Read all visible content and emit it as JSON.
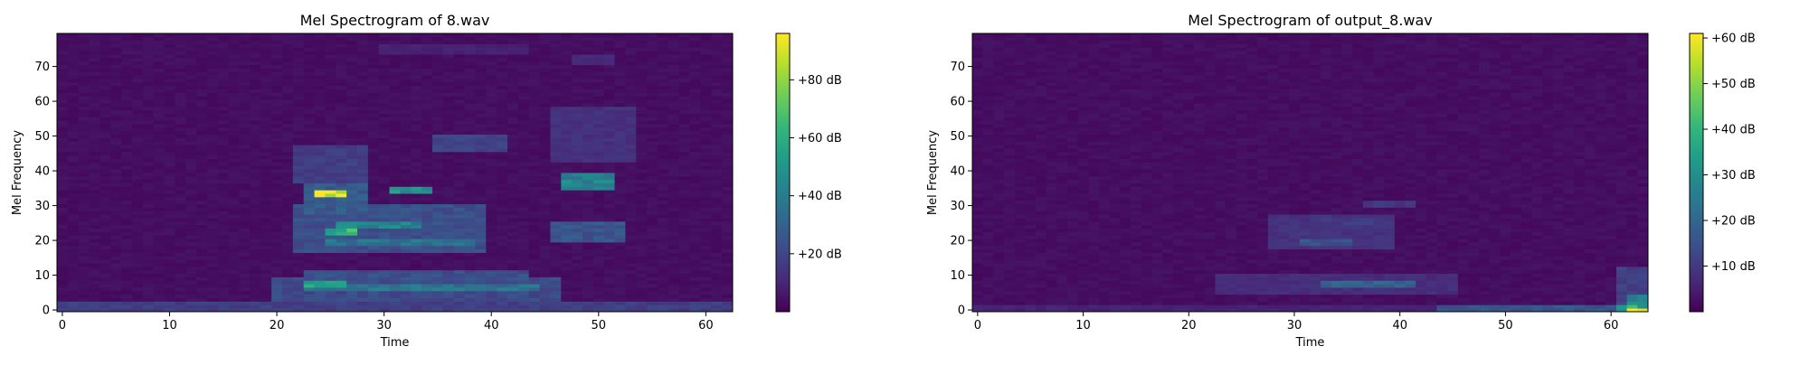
{
  "chart_data": [
    {
      "type": "heatmap",
      "title": "Mel Spectrogram of 8.wav",
      "xlabel": "Time",
      "ylabel": "Mel Frequency",
      "xlim": [
        -0.5,
        62.5
      ],
      "ylim": [
        -0.5,
        79.5
      ],
      "xticks": [
        0,
        10,
        20,
        30,
        40,
        50,
        60
      ],
      "yticks": [
        0,
        10,
        20,
        30,
        40,
        50,
        60,
        70
      ],
      "colormap": "viridis",
      "colorbar": {
        "range_db": [
          0,
          96
        ],
        "ticks": [
          20,
          40,
          60,
          80
        ],
        "tick_labels": [
          "+20 dB",
          "+40 dB",
          "+60 dB",
          "+80 dB"
        ]
      },
      "n_frames": 63,
      "n_mels": 80,
      "bands": [
        {
          "t": [
            0,
            62
          ],
          "m": [
            0,
            2
          ],
          "v": 18
        },
        {
          "t": [
            20,
            46
          ],
          "m": [
            3,
            9
          ],
          "v": 22
        },
        {
          "t": [
            23,
            26
          ],
          "m": [
            7,
            8
          ],
          "v": 55
        },
        {
          "t": [
            23,
            44
          ],
          "m": [
            6,
            7
          ],
          "v": 38
        },
        {
          "t": [
            23,
            43
          ],
          "m": [
            9,
            11
          ],
          "v": 24
        },
        {
          "t": [
            22,
            39
          ],
          "m": [
            17,
            30
          ],
          "v": 24
        },
        {
          "t": [
            25,
            38
          ],
          "m": [
            19,
            20
          ],
          "v": 38
        },
        {
          "t": [
            25,
            27
          ],
          "m": [
            22,
            23
          ],
          "v": 62
        },
        {
          "t": [
            26,
            33
          ],
          "m": [
            24,
            25
          ],
          "v": 44
        },
        {
          "t": [
            23,
            28
          ],
          "m": [
            28,
            36
          ],
          "v": 28
        },
        {
          "t": [
            24,
            26
          ],
          "m": [
            33,
            34
          ],
          "v": 94
        },
        {
          "t": [
            31,
            34
          ],
          "m": [
            34,
            35
          ],
          "v": 52
        },
        {
          "t": [
            22,
            28
          ],
          "m": [
            37,
            47
          ],
          "v": 18
        },
        {
          "t": [
            35,
            41
          ],
          "m": [
            46,
            50
          ],
          "v": 20
        },
        {
          "t": [
            46,
            52
          ],
          "m": [
            20,
            25
          ],
          "v": 26
        },
        {
          "t": [
            47,
            51
          ],
          "m": [
            35,
            39
          ],
          "v": 44
        },
        {
          "t": [
            46,
            53
          ],
          "m": [
            43,
            58
          ],
          "v": 14
        },
        {
          "t": [
            30,
            43
          ],
          "m": [
            74,
            76
          ],
          "v": 9
        },
        {
          "t": [
            48,
            51
          ],
          "m": [
            71,
            73
          ],
          "v": 11
        }
      ]
    },
    {
      "type": "heatmap",
      "title": "Mel Spectrogram of output_8.wav",
      "xlabel": "Time",
      "ylabel": "Mel Frequency",
      "xlim": [
        -0.5,
        63.5
      ],
      "ylim": [
        -0.5,
        79.5
      ],
      "xticks": [
        0,
        10,
        20,
        30,
        40,
        50,
        60
      ],
      "yticks": [
        0,
        10,
        20,
        30,
        40,
        50,
        60,
        70
      ],
      "colormap": "viridis",
      "colorbar": {
        "range_db": [
          0,
          61
        ],
        "ticks": [
          10,
          20,
          30,
          40,
          50,
          60
        ],
        "tick_labels": [
          "+10 dB",
          "+20 dB",
          "+30 dB",
          "+40 dB",
          "+50 dB",
          "+60 dB"
        ]
      },
      "n_frames": 64,
      "n_mels": 80,
      "bands": [
        {
          "t": [
            0,
            63
          ],
          "m": [
            0,
            1
          ],
          "v": 6
        },
        {
          "t": [
            44,
            62
          ],
          "m": [
            0,
            1
          ],
          "v": 16
        },
        {
          "t": [
            23,
            45
          ],
          "m": [
            5,
            10
          ],
          "v": 8
        },
        {
          "t": [
            33,
            41
          ],
          "m": [
            7,
            8
          ],
          "v": 20
        },
        {
          "t": [
            28,
            39
          ],
          "m": [
            18,
            27
          ],
          "v": 9
        },
        {
          "t": [
            31,
            35
          ],
          "m": [
            19,
            20
          ],
          "v": 16
        },
        {
          "t": [
            32,
            37
          ],
          "m": [
            25,
            26
          ],
          "v": 11
        },
        {
          "t": [
            37,
            41
          ],
          "m": [
            30,
            31
          ],
          "v": 10
        },
        {
          "t": [
            61,
            63
          ],
          "m": [
            0,
            12
          ],
          "v": 12
        },
        {
          "t": [
            62,
            63
          ],
          "m": [
            0,
            4
          ],
          "v": 28
        },
        {
          "t": [
            61,
            62
          ],
          "m": [
            0,
            1
          ],
          "v": 38
        },
        {
          "t": [
            62,
            63
          ],
          "m": [
            0,
            0
          ],
          "v": 61
        }
      ]
    }
  ]
}
